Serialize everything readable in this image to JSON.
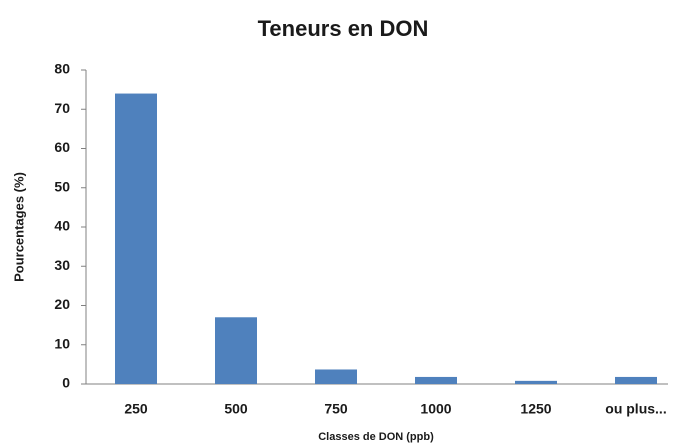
{
  "chart_data": {
    "type": "bar",
    "title": "Teneurs en DON",
    "x_label": "Classes de DON (ppb)",
    "y_label": "Pourcentages (%)",
    "categories": [
      "250",
      "500",
      "750",
      "1000",
      "1250",
      "ou plus..."
    ],
    "values": [
      74,
      17,
      3.7,
      1.8,
      0.8,
      1.8
    ],
    "color": "#4f81bd",
    "ylim": [
      0,
      80
    ],
    "yticks": [
      0,
      10,
      20,
      30,
      40,
      50,
      60,
      70,
      80
    ],
    "grid": false
  }
}
